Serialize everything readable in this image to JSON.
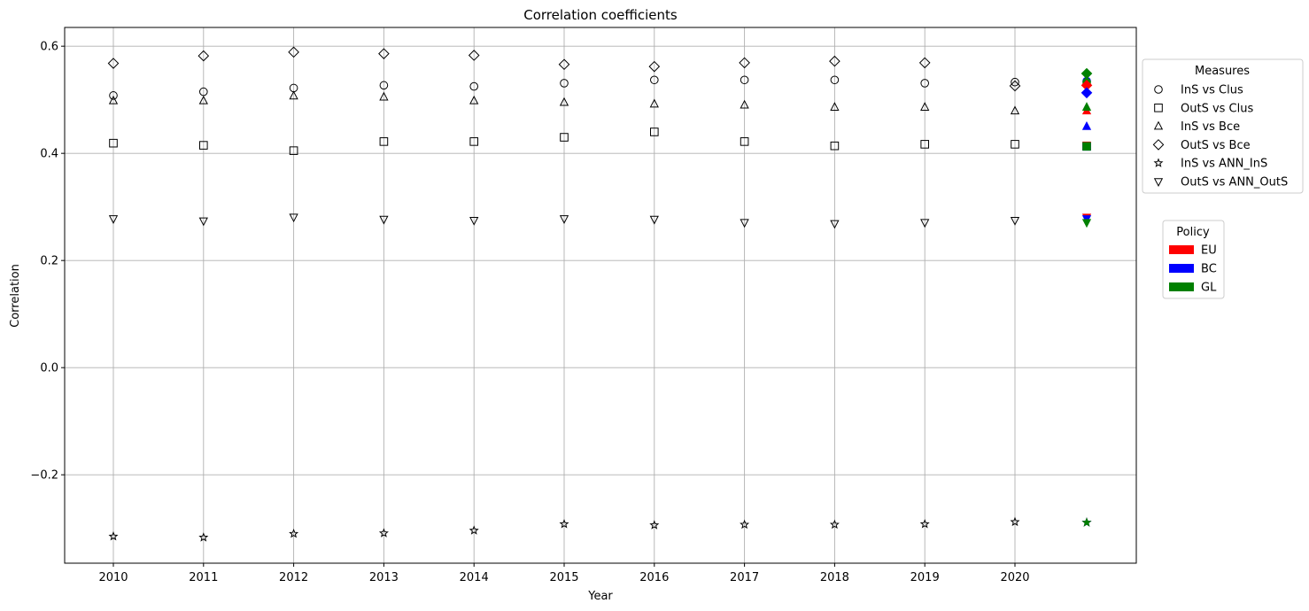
{
  "chart_data": {
    "type": "scatter",
    "title": "Correlation coefficients",
    "xlabel": "Year",
    "ylabel": "Correlation",
    "categories": [
      "2010",
      "2011",
      "2012",
      "2013",
      "2014",
      "2015",
      "2016",
      "2017",
      "2018",
      "2019",
      "2020"
    ],
    "ylim": [
      -0.365,
      0.635
    ],
    "yticks": [
      -0.2,
      0.0,
      0.2,
      0.4,
      0.6
    ],
    "ytick_labels": [
      "−0.2",
      "0.0",
      "0.2",
      "0.4",
      "0.6"
    ],
    "grid": true,
    "series": [
      {
        "name": "InS vs Clus",
        "marker": "circle",
        "values": [
          0.508,
          0.515,
          0.522,
          0.527,
          0.525,
          0.531,
          0.537,
          0.537,
          0.537,
          0.531,
          0.533
        ]
      },
      {
        "name": "OutS vs Clus",
        "marker": "square",
        "values": [
          0.419,
          0.415,
          0.405,
          0.422,
          0.422,
          0.43,
          0.44,
          0.422,
          0.414,
          0.417,
          0.417
        ]
      },
      {
        "name": "InS vs Bce",
        "marker": "triangle-up",
        "values": [
          0.498,
          0.498,
          0.507,
          0.505,
          0.498,
          0.495,
          0.492,
          0.49,
          0.486,
          0.486,
          0.479
        ]
      },
      {
        "name": "OutS vs Bce",
        "marker": "diamond",
        "values": [
          0.568,
          0.582,
          0.589,
          0.586,
          0.583,
          0.566,
          0.562,
          0.569,
          0.572,
          0.569,
          0.526
        ]
      },
      {
        "name": "InS vs ANN_InS",
        "marker": "star",
        "values": [
          -0.315,
          -0.317,
          -0.31,
          -0.309,
          -0.304,
          -0.292,
          -0.294,
          -0.293,
          -0.293,
          -0.292,
          -0.288
        ]
      },
      {
        "name": "OutS vs ANN_OutS",
        "marker": "triangle-down",
        "values": [
          0.278,
          0.274,
          0.281,
          0.277,
          0.275,
          0.278,
          0.277,
          0.271,
          0.269,
          0.271,
          0.275
        ]
      }
    ],
    "policy_points": [
      {
        "policy": "EU",
        "color": "#ff0000",
        "series": "InS vs Clus",
        "value": 0.53
      },
      {
        "policy": "BC",
        "color": "#0000ff",
        "series": "InS vs Clus",
        "value": 0.535
      },
      {
        "policy": "GL",
        "color": "#008000",
        "series": "InS vs Clus",
        "value": 0.533
      },
      {
        "policy": "EU",
        "color": "#ff0000",
        "series": "OutS vs Clus",
        "value": 0.414
      },
      {
        "policy": "BC",
        "color": "#0000ff",
        "series": "OutS vs Clus",
        "value": 0.413
      },
      {
        "policy": "GL",
        "color": "#008000",
        "series": "OutS vs Clus",
        "value": 0.413
      },
      {
        "policy": "EU",
        "color": "#ff0000",
        "series": "InS vs Bce",
        "value": 0.479
      },
      {
        "policy": "BC",
        "color": "#0000ff",
        "series": "InS vs Bce",
        "value": 0.45
      },
      {
        "policy": "GL",
        "color": "#008000",
        "series": "InS vs Bce",
        "value": 0.486
      },
      {
        "policy": "EU",
        "color": "#ff0000",
        "series": "OutS vs Bce",
        "value": 0.527
      },
      {
        "policy": "BC",
        "color": "#0000ff",
        "series": "OutS vs Bce",
        "value": 0.513
      },
      {
        "policy": "GL",
        "color": "#008000",
        "series": "OutS vs Bce",
        "value": 0.549
      },
      {
        "policy": "EU",
        "color": "#ff0000",
        "series": "InS vs ANN_InS",
        "value": -0.289
      },
      {
        "policy": "BC",
        "color": "#0000ff",
        "series": "InS vs ANN_InS",
        "value": -0.289
      },
      {
        "policy": "GL",
        "color": "#008000",
        "series": "InS vs ANN_InS",
        "value": -0.289
      },
      {
        "policy": "EU",
        "color": "#ff0000",
        "series": "OutS vs ANN_OutS",
        "value": 0.281
      },
      {
        "policy": "BC",
        "color": "#0000ff",
        "series": "OutS vs ANN_OutS",
        "value": 0.278
      },
      {
        "policy": "GL",
        "color": "#008000",
        "series": "OutS vs ANN_OutS",
        "value": 0.271
      }
    ],
    "legend_measures": {
      "title": "Measures",
      "placement": "outside-right-top",
      "entries": [
        "InS vs Clus",
        "OutS vs Clus",
        "InS vs Bce",
        "OutS vs Bce",
        "InS vs ANN_InS",
        "OutS vs ANN_OutS"
      ]
    },
    "legend_policy": {
      "title": "Policy",
      "placement": "outside-right",
      "entries": [
        {
          "label": "EU",
          "color": "#ff0000"
        },
        {
          "label": "BC",
          "color": "#0000ff"
        },
        {
          "label": "GL",
          "color": "#008000"
        }
      ]
    }
  }
}
